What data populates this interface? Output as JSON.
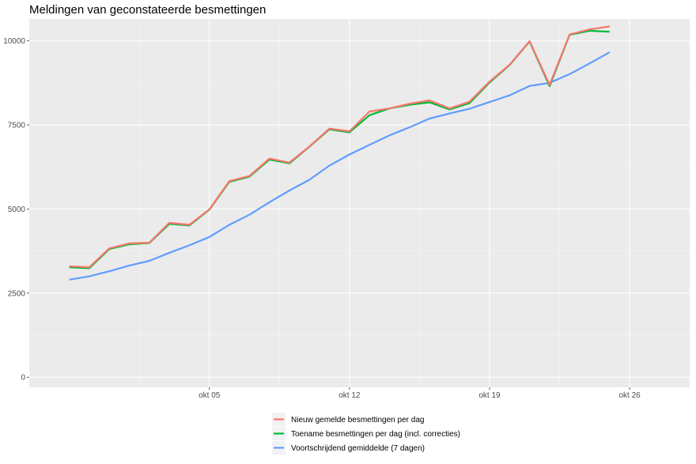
{
  "chart_data": {
    "type": "line",
    "title": "Meldingen van geconstateerde besmettingen",
    "xlabel": "",
    "ylabel": "",
    "x": [
      "2020-09-28",
      "2020-09-29",
      "2020-09-30",
      "2020-10-01",
      "2020-10-02",
      "2020-10-03",
      "2020-10-04",
      "2020-10-05",
      "2020-10-06",
      "2020-10-07",
      "2020-10-08",
      "2020-10-09",
      "2020-10-10",
      "2020-10-11",
      "2020-10-12",
      "2020-10-13",
      "2020-10-14",
      "2020-10-15",
      "2020-10-16",
      "2020-10-17",
      "2020-10-18",
      "2020-10-19",
      "2020-10-20",
      "2020-10-21",
      "2020-10-22",
      "2020-10-23",
      "2020-10-24",
      "2020-10-25",
      "2020-10-26",
      "2020-10-27",
      "2020-10-28"
    ],
    "x_ticks": [
      {
        "date": "2020-10-05",
        "label": "okt 05"
      },
      {
        "date": "2020-10-12",
        "label": "okt 12"
      },
      {
        "date": "2020-10-19",
        "label": "okt 19"
      },
      {
        "date": "2020-10-26",
        "label": "okt 26"
      }
    ],
    "y_ticks": [
      0,
      2500,
      5000,
      7500,
      10000
    ],
    "ylim": [
      -300,
      10650
    ],
    "xlim": [
      "2020-09-26",
      "2020-10-29"
    ],
    "grid": true,
    "legend_position": "bottom",
    "series": [
      {
        "name": "Nieuw gemelde besmettingen per dag",
        "color": "#F8766D",
        "values": [
          3300,
          3270,
          3830,
          3980,
          4000,
          4590,
          4530,
          4990,
          5830,
          5980,
          6500,
          6380,
          6860,
          7390,
          7310,
          7900,
          7990,
          8130,
          8230,
          7990,
          8190,
          8790,
          9290,
          9990,
          8690,
          10190,
          10340,
          10430,
          null,
          null,
          null
        ]
      },
      {
        "name": "Toename besmettingen per dag (incl. correcties)",
        "color": "#00BA38",
        "values": [
          3270,
          3240,
          3810,
          3950,
          3990,
          4560,
          4510,
          4980,
          5810,
          5960,
          6470,
          6360,
          6850,
          7370,
          7280,
          7790,
          7990,
          8100,
          8170,
          7960,
          8150,
          8760,
          9280,
          9980,
          8650,
          10180,
          10300,
          10270,
          null,
          null,
          null
        ]
      },
      {
        "name": "Voortschrijdend gemiddelde (7 dagen)",
        "color": "#619CFF",
        "values": [
          2900,
          3000,
          3150,
          3320,
          3460,
          3700,
          3920,
          4170,
          4530,
          4830,
          5200,
          5550,
          5870,
          6290,
          6620,
          6910,
          7190,
          7430,
          7690,
          7840,
          7980,
          8180,
          8380,
          8660,
          8750,
          9010,
          9330,
          9660,
          null,
          null,
          null
        ]
      }
    ]
  }
}
